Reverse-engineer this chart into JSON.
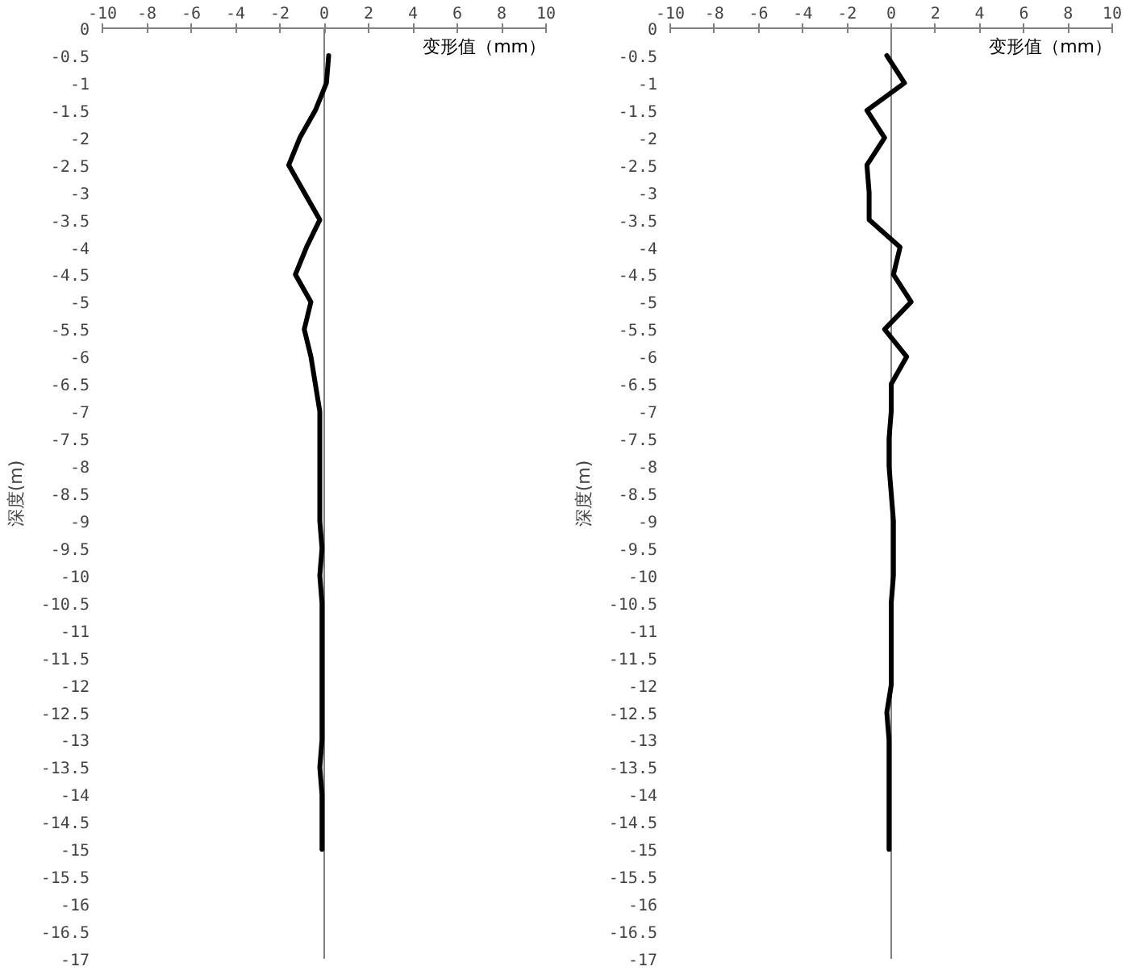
{
  "chart_data": [
    {
      "type": "line",
      "xlabel": "变形值（mm）",
      "ylabel": "深度(m)",
      "xlim": [
        -10,
        10
      ],
      "ylim": [
        -17,
        0
      ],
      "xticks": [
        -10,
        -8,
        -6,
        -4,
        -2,
        0,
        2,
        4,
        6,
        8,
        10
      ],
      "yticks": [
        0,
        -0.5,
        -1,
        -1.5,
        -2,
        -2.5,
        -3,
        -3.5,
        -4,
        -4.5,
        -5,
        -5.5,
        -6,
        -6.5,
        -7,
        -7.5,
        -8,
        -8.5,
        -9,
        -9.5,
        -10,
        -10.5,
        -11,
        -11.5,
        -12,
        -12.5,
        -13,
        -13.5,
        -14,
        -14.5,
        -15,
        -15.5,
        -16,
        -16.5,
        -17
      ],
      "ref_lines": [
        {
          "axis": "x",
          "value": 0,
          "color": "#808080"
        }
      ],
      "series": [
        {
          "color": "#000000",
          "x": [
            0.2,
            0.1,
            -0.4,
            -1.1,
            -1.6,
            -0.9,
            -0.2,
            -0.8,
            -1.3,
            -0.6,
            -0.9,
            -0.6,
            -0.4,
            -0.2,
            -0.2,
            -0.2,
            -0.2,
            -0.2,
            -0.1,
            -0.2,
            -0.1,
            -0.1,
            -0.1,
            -0.1,
            -0.1,
            -0.1,
            -0.2,
            -0.1,
            -0.1,
            -0.1
          ],
          "values": [
            -0.5,
            -1,
            -1.5,
            -2,
            -2.5,
            -3,
            -3.5,
            -4,
            -4.5,
            -5,
            -5.5,
            -6,
            -6.5,
            -7,
            -7.5,
            -8,
            -8.5,
            -9,
            -9.5,
            -10,
            -10.5,
            -11,
            -11.5,
            -12,
            -12.5,
            -13,
            -13.5,
            -14,
            -14.5,
            -15
          ]
        }
      ]
    },
    {
      "type": "line",
      "xlabel": "变形值（mm）",
      "ylabel": "深度(m)",
      "xlim": [
        -10,
        10
      ],
      "ylim": [
        -17,
        0
      ],
      "xticks": [
        -10,
        -8,
        -6,
        -4,
        -2,
        0,
        2,
        4,
        6,
        8,
        10
      ],
      "yticks": [
        0,
        -0.5,
        -1,
        -1.5,
        -2,
        -2.5,
        -3,
        -3.5,
        -4,
        -4.5,
        -5,
        -5.5,
        -6,
        -6.5,
        -7,
        -7.5,
        -8,
        -8.5,
        -9,
        -9.5,
        -10,
        -10.5,
        -11,
        -11.5,
        -12,
        -12.5,
        -13,
        -13.5,
        -14,
        -14.5,
        -15,
        -15.5,
        -16,
        -16.5,
        -17
      ],
      "ref_lines": [
        {
          "axis": "x",
          "value": 0,
          "color": "#808080"
        }
      ],
      "series": [
        {
          "color": "#000000",
          "x": [
            -0.2,
            0.6,
            -1.1,
            -0.3,
            -1.1,
            -1.0,
            -1.0,
            0.4,
            0.1,
            0.9,
            -0.3,
            0.7,
            0.0,
            0.0,
            -0.1,
            -0.1,
            0.0,
            0.1,
            0.1,
            0.1,
            0.0,
            0.0,
            0.0,
            0.0,
            -0.2,
            -0.1,
            -0.1,
            -0.1,
            -0.1,
            -0.1
          ],
          "values": [
            -0.5,
            -1,
            -1.5,
            -2,
            -2.5,
            -3,
            -3.5,
            -4,
            -4.5,
            -5,
            -5.5,
            -6,
            -6.5,
            -7,
            -7.5,
            -8,
            -8.5,
            -9,
            -9.5,
            -10,
            -10.5,
            -11,
            -11.5,
            -12,
            -12.5,
            -13,
            -13.5,
            -14,
            -14.5,
            -15
          ]
        }
      ]
    }
  ]
}
